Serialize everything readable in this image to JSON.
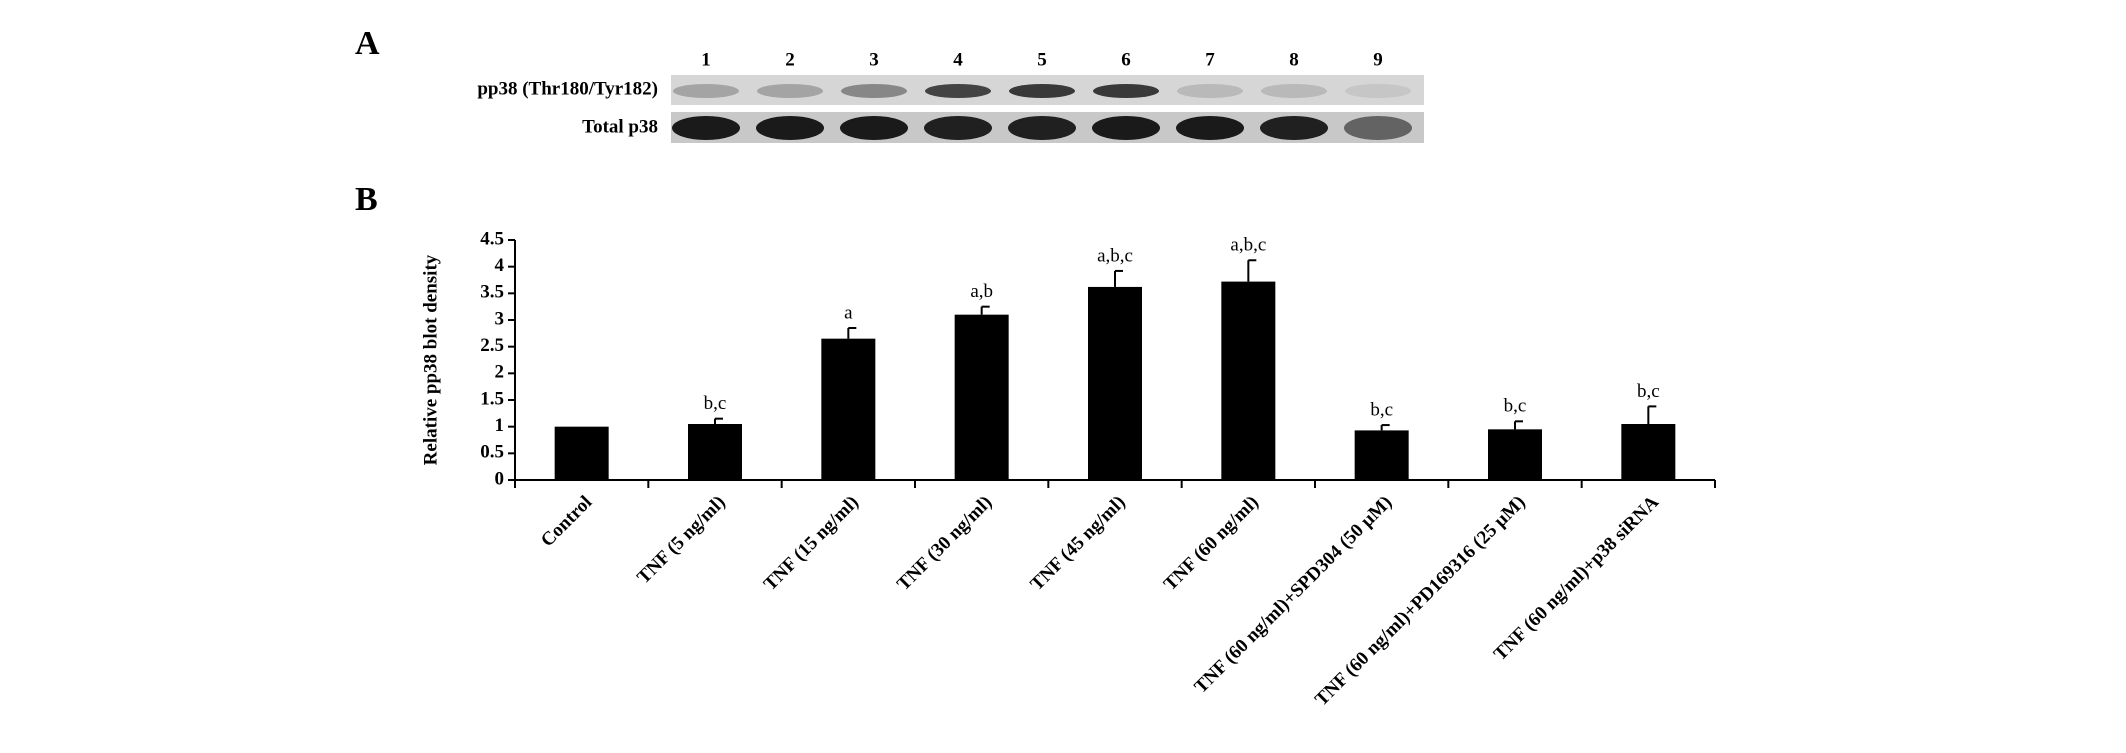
{
  "panel_a": {
    "label": "A",
    "lanes": [
      "1",
      "2",
      "3",
      "4",
      "5",
      "6",
      "7",
      "8",
      "9"
    ],
    "rows": [
      "pp38 (Thr180/Tyr182)",
      "Total p38"
    ]
  },
  "chart_data": {
    "type": "bar",
    "panel_label": "B",
    "y_label": "Relative pp38 blot density",
    "categories": [
      "Control",
      "TNF (5 ng/ml)",
      "TNF (15 ng/ml)",
      "TNF (30 ng/ml)",
      "TNF (45 ng/ml)",
      "TNF (60 ng/ml)",
      "TNF (60 ng/ml)+SPD304 (50 µM)",
      "TNF (60 ng/ml)+PD169316 (25 µM)",
      "TNF (60 ng/ml)+p38 siRNA"
    ],
    "values": [
      1.0,
      1.05,
      2.65,
      3.1,
      3.62,
      3.72,
      0.93,
      0.95,
      1.05
    ],
    "errors": [
      null,
      0.1,
      0.2,
      0.15,
      0.3,
      0.4,
      0.1,
      0.15,
      0.33
    ],
    "annotations": [
      null,
      "b,c",
      "a",
      "a,b",
      "a,b,c",
      "a,b,c",
      "b,c",
      "b,c",
      "b,c"
    ],
    "color": "#000000",
    "ylim": [
      0,
      4.5
    ],
    "yticks": [
      0,
      0.5,
      1,
      1.5,
      2,
      2.5,
      3,
      3.5,
      4,
      4.5
    ]
  }
}
